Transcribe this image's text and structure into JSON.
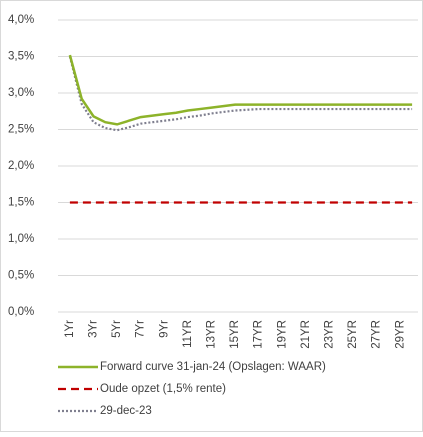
{
  "chart_data": {
    "type": "line",
    "categories": [
      "1Yr",
      null,
      "3Yr",
      null,
      "5Yr",
      null,
      "7Yr",
      null,
      "9Yr",
      null,
      "11YR",
      null,
      "13YR",
      null,
      "15YR",
      null,
      "17YR",
      null,
      "19YR",
      null,
      "21YR",
      null,
      "23YR",
      null,
      "25YR",
      null,
      "27YR",
      null,
      "29YR",
      null
    ],
    "series": [
      {
        "name": "Forward curve 31-jan-24 (Opslagen: WAAR)",
        "color": "#8db32a",
        "style": "solid",
        "values": [
          3.52,
          2.92,
          2.68,
          2.6,
          2.57,
          2.62,
          2.67,
          2.69,
          2.71,
          2.73,
          2.76,
          2.78,
          2.8,
          2.82,
          2.84,
          2.84,
          2.84,
          2.84,
          2.84,
          2.84,
          2.84,
          2.84,
          2.84,
          2.84,
          2.84,
          2.84,
          2.84,
          2.84,
          2.84,
          2.84
        ]
      },
      {
        "name": "Oude opzet (1,5% rente)",
        "color": "#c00000",
        "style": "dashed",
        "values": [
          1.5,
          1.5,
          1.5,
          1.5,
          1.5,
          1.5,
          1.5,
          1.5,
          1.5,
          1.5,
          1.5,
          1.5,
          1.5,
          1.5,
          1.5,
          1.5,
          1.5,
          1.5,
          1.5,
          1.5,
          1.5,
          1.5,
          1.5,
          1.5,
          1.5,
          1.5,
          1.5,
          1.5,
          1.5,
          1.5
        ]
      },
      {
        "name": "29-dec-23",
        "color": "#7f7f8f",
        "style": "dotted",
        "values": [
          3.5,
          2.85,
          2.6,
          2.52,
          2.49,
          2.53,
          2.58,
          2.6,
          2.62,
          2.64,
          2.67,
          2.69,
          2.72,
          2.74,
          2.76,
          2.77,
          2.78,
          2.78,
          2.78,
          2.78,
          2.78,
          2.78,
          2.78,
          2.78,
          2.78,
          2.78,
          2.78,
          2.78,
          2.78,
          2.78
        ]
      }
    ],
    "ylim": [
      0,
      4
    ],
    "yticks": [
      {
        "value": 0,
        "label": "0,0%"
      },
      {
        "value": 0.5,
        "label": "0,5%"
      },
      {
        "value": 1,
        "label": "1,0%"
      },
      {
        "value": 1.5,
        "label": "1,5%"
      },
      {
        "value": 2,
        "label": "2,0%"
      },
      {
        "value": 2.5,
        "label": "2,5%"
      },
      {
        "value": 3,
        "label": "3,0%"
      },
      {
        "value": 3.5,
        "label": "3,5%"
      },
      {
        "value": 4,
        "label": "4,0%"
      }
    ],
    "grid": true,
    "legend": "bottom"
  }
}
